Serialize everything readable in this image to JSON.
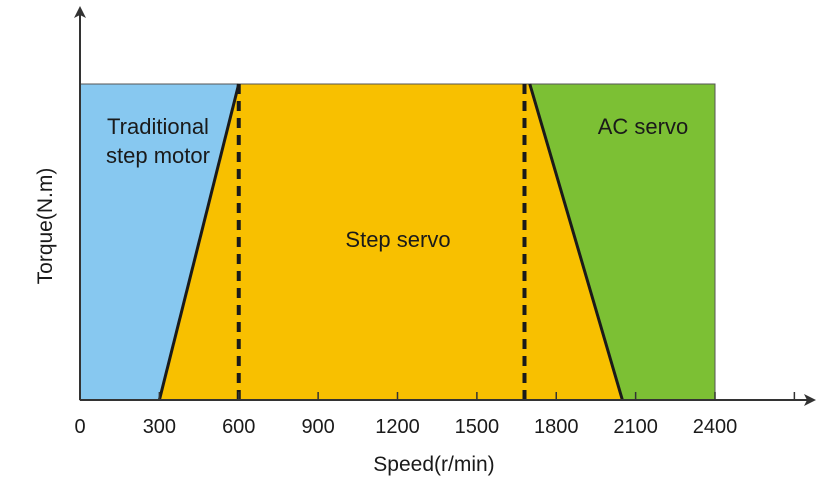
{
  "chart_data": {
    "type": "area",
    "title": "",
    "xlabel": "Speed(r/min)",
    "ylabel": "Torque(N.m)",
    "xlim": [
      0,
      2400
    ],
    "ticks": [
      "0",
      "300",
      "600",
      "900",
      "1200",
      "1500",
      "1800",
      "2100",
      "2400"
    ],
    "tick_values": [
      0,
      300,
      600,
      900,
      1200,
      1500,
      1800,
      2100,
      2400
    ],
    "regions": [
      {
        "name": "Traditional step motor",
        "label_lines": [
          "Traditional",
          "step motor"
        ],
        "color": "#87c8f0",
        "x_range": [
          0,
          600
        ]
      },
      {
        "name": "Step servo",
        "label_lines": [
          "Step servo"
        ],
        "color": "#f8c000",
        "x_range": [
          300,
          2050
        ]
      },
      {
        "name": "AC servo",
        "label_lines": [
          "AC servo"
        ],
        "color": "#7cc034",
        "x_range": [
          1700,
          2400
        ]
      }
    ],
    "boundaries": {
      "left_slope": {
        "x_bottom": 300,
        "x_top": 600
      },
      "right_slope": {
        "x_top": 1700,
        "x_bottom": 2050
      },
      "dashed_lines": [
        600,
        1680
      ]
    },
    "grid": false,
    "legend": "none"
  }
}
